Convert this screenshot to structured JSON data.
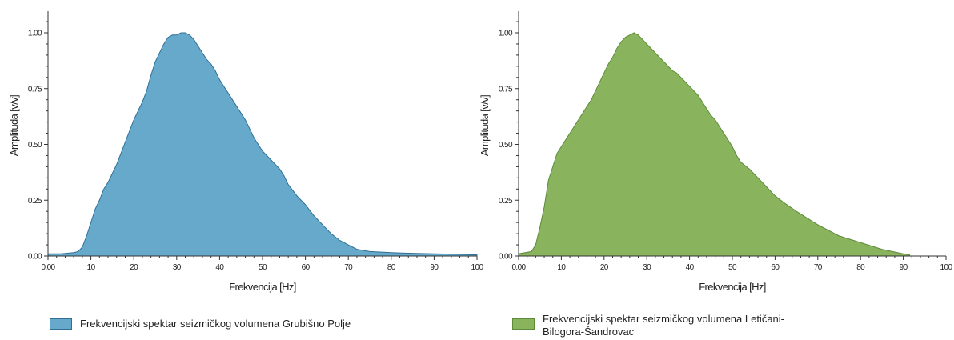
{
  "chart_data": [
    {
      "type": "area",
      "xlabel": "Frekvencija [Hz]",
      "ylabel": "Amplituda [v/v]",
      "xlim": [
        0,
        100
      ],
      "ylim": [
        0,
        1
      ],
      "x_ticks": [
        "0.00",
        "10",
        "20",
        "30",
        "40",
        "50",
        "60",
        "70",
        "80",
        "90",
        "100"
      ],
      "y_ticks": [
        "0.00",
        "0.25",
        "0.50",
        "0.75",
        "1.00"
      ],
      "grid": false,
      "fill_color": "#67a9cb",
      "edge_color": "#2f6f95",
      "series": [
        {
          "name": "Frekvencijski spektar seizmičkog volumena Grubišno Polje",
          "x": [
            0,
            3,
            6,
            7,
            8,
            9,
            10,
            11,
            12,
            13,
            14,
            15,
            16,
            17,
            18,
            19,
            20,
            21,
            22,
            23,
            24,
            25,
            26,
            27,
            28,
            29,
            30,
            31,
            32,
            33,
            34,
            35,
            36,
            37,
            38,
            39,
            40,
            41,
            42,
            43,
            44,
            45,
            46,
            47,
            48,
            49,
            50,
            52,
            54,
            55,
            56,
            58,
            60,
            62,
            64,
            66,
            68,
            70,
            72,
            75,
            80,
            85,
            90,
            95,
            100
          ],
          "y": [
            0.01,
            0.01,
            0.015,
            0.02,
            0.04,
            0.09,
            0.15,
            0.21,
            0.25,
            0.3,
            0.33,
            0.37,
            0.41,
            0.46,
            0.51,
            0.56,
            0.61,
            0.65,
            0.69,
            0.74,
            0.81,
            0.87,
            0.91,
            0.95,
            0.98,
            0.99,
            0.99,
            1.0,
            1.0,
            0.99,
            0.97,
            0.94,
            0.91,
            0.88,
            0.86,
            0.83,
            0.79,
            0.76,
            0.73,
            0.7,
            0.67,
            0.64,
            0.61,
            0.57,
            0.53,
            0.5,
            0.47,
            0.43,
            0.39,
            0.36,
            0.32,
            0.27,
            0.23,
            0.18,
            0.14,
            0.1,
            0.07,
            0.05,
            0.03,
            0.02,
            0.015,
            0.012,
            0.01,
            0.008,
            0.005
          ]
        }
      ]
    },
    {
      "type": "area",
      "xlabel": "Frekvencija [Hz]",
      "ylabel": "Amplituda [v/v]",
      "xlim": [
        0,
        100
      ],
      "ylim": [
        0,
        1
      ],
      "x_ticks": [
        "0.00",
        "10",
        "20",
        "30",
        "40",
        "50",
        "60",
        "70",
        "80",
        "90",
        "100"
      ],
      "y_ticks": [
        "0.00",
        "0.25",
        "0.50",
        "0.75",
        "1.00"
      ],
      "grid": false,
      "fill_color": "#8ab35d",
      "edge_color": "#5c8c3a",
      "series": [
        {
          "name": "Frekvencijski spektar seizmičkog volumena Letičani-Bilogora-Šandrovac",
          "x": [
            0,
            3,
            4,
            5,
            6,
            7,
            8,
            9,
            10,
            11,
            12,
            13,
            14,
            15,
            16,
            17,
            18,
            19,
            20,
            21,
            22,
            23,
            24,
            25,
            26,
            27,
            28,
            29,
            30,
            31,
            32,
            33,
            34,
            35,
            36,
            37,
            38,
            39,
            40,
            41,
            42,
            43,
            44,
            45,
            46,
            47,
            48,
            49,
            50,
            51,
            52,
            54,
            56,
            58,
            60,
            62,
            65,
            70,
            75,
            80,
            85,
            90,
            91.5
          ],
          "y": [
            0.01,
            0.02,
            0.05,
            0.13,
            0.22,
            0.34,
            0.4,
            0.46,
            0.49,
            0.52,
            0.55,
            0.58,
            0.61,
            0.64,
            0.67,
            0.7,
            0.74,
            0.78,
            0.82,
            0.86,
            0.89,
            0.93,
            0.96,
            0.98,
            0.99,
            1.0,
            0.99,
            0.97,
            0.95,
            0.93,
            0.91,
            0.89,
            0.87,
            0.85,
            0.83,
            0.82,
            0.8,
            0.78,
            0.76,
            0.74,
            0.72,
            0.69,
            0.66,
            0.63,
            0.61,
            0.58,
            0.55,
            0.52,
            0.49,
            0.45,
            0.42,
            0.39,
            0.35,
            0.31,
            0.27,
            0.24,
            0.2,
            0.14,
            0.09,
            0.06,
            0.03,
            0.01,
            0.005
          ]
        }
      ]
    }
  ]
}
